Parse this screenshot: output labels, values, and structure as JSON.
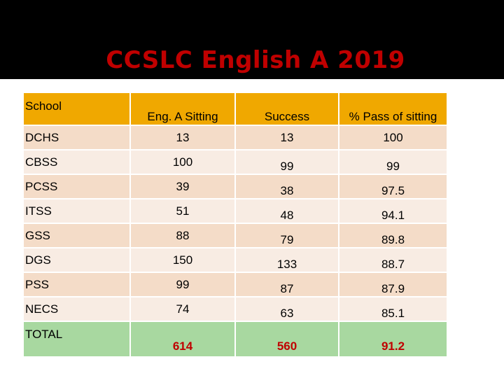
{
  "title": "CCSLC English A 2019",
  "columns": [
    "School",
    "Eng. A Sitting",
    "Success",
    "% Pass of sitting"
  ],
  "rows": [
    {
      "school": "DCHS",
      "sitting": "13",
      "success": "13",
      "pass": "100"
    },
    {
      "school": "CBSS",
      "sitting": "100",
      "success": "99",
      "pass": "99"
    },
    {
      "school": "PCSS",
      "sitting": "39",
      "success": "38",
      "pass": "97.5"
    },
    {
      "school": "ITSS",
      "sitting": "51",
      "success": "48",
      "pass": "94.1"
    },
    {
      "school": "GSS",
      "sitting": "88",
      "success": "79",
      "pass": "89.8"
    },
    {
      "school": "DGS",
      "sitting": "150",
      "success": "133",
      "pass": "88.7"
    },
    {
      "school": "PSS",
      "sitting": "99",
      "success": "87",
      "pass": "87.9"
    },
    {
      "school": "NECS",
      "sitting": "74",
      "success": "63",
      "pass": "85.1"
    }
  ],
  "total": {
    "school": "TOTAL",
    "sitting": "614",
    "success": "560",
    "pass": "91.2"
  },
  "colors": {
    "background": "#000000",
    "title": "#c00000",
    "header": "#f0a800",
    "row_odd": "#f4dcc8",
    "row_even": "#f8ece3",
    "total_row": "#a8d8a0",
    "total_text": "#c00000"
  }
}
